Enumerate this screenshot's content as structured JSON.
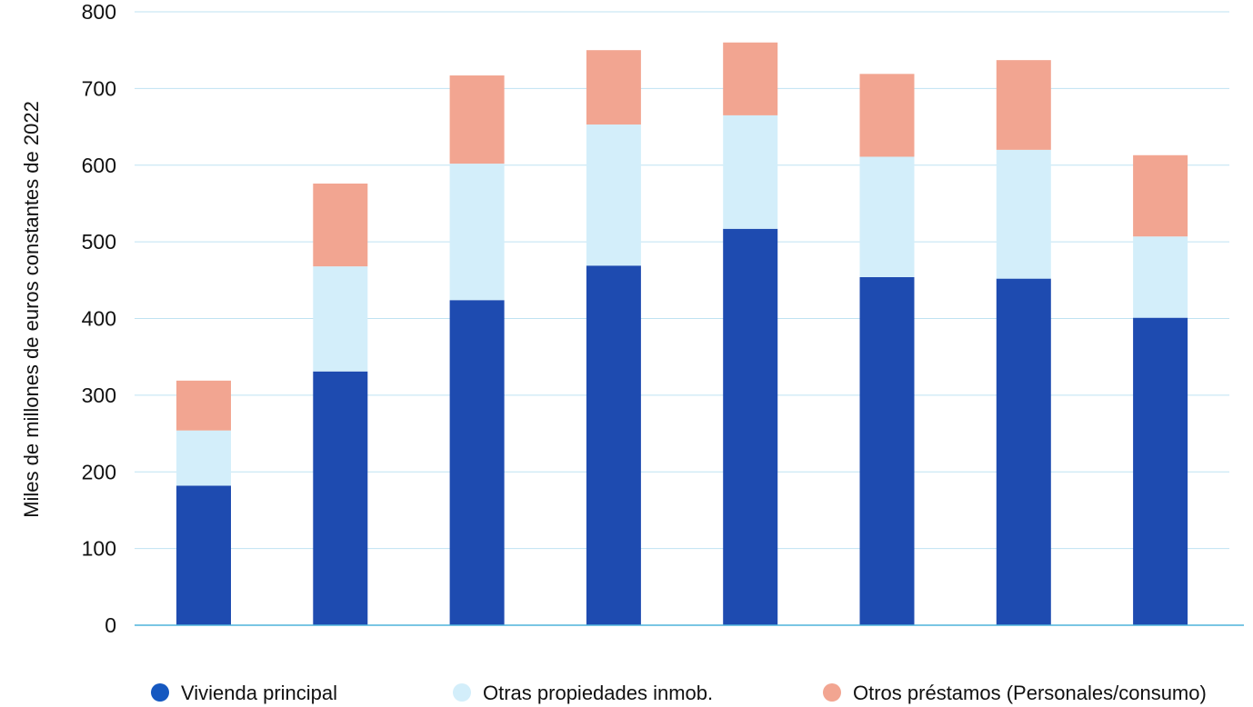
{
  "chart_data": {
    "type": "bar",
    "stacked": true,
    "ylabel": "Miles de millones de euros constantes de 2022",
    "ylim": [
      0,
      800
    ],
    "yticks": [
      0,
      100,
      200,
      300,
      400,
      500,
      600,
      700,
      800
    ],
    "grid": true,
    "legend_position": "bottom",
    "categories": [
      "",
      "",
      "",
      "",
      "",
      "",
      "",
      ""
    ],
    "series": [
      {
        "name": "Vivienda principal",
        "color": "#1e4bb0",
        "legend_color": "#1558c0",
        "values": [
          182,
          331,
          424,
          469,
          517,
          454,
          452,
          401
        ]
      },
      {
        "name": "Otras propiedades inmob.",
        "color": "#d3eefa",
        "legend_color": "#d3eefa",
        "values": [
          72,
          137,
          178,
          184,
          148,
          157,
          168,
          106
        ]
      },
      {
        "name": "Otros préstamos (Personales/consumo)",
        "color": "#f2a591",
        "legend_color": "#f2a591",
        "values": [
          65,
          108,
          115,
          97,
          95,
          108,
          117,
          106
        ]
      }
    ]
  }
}
